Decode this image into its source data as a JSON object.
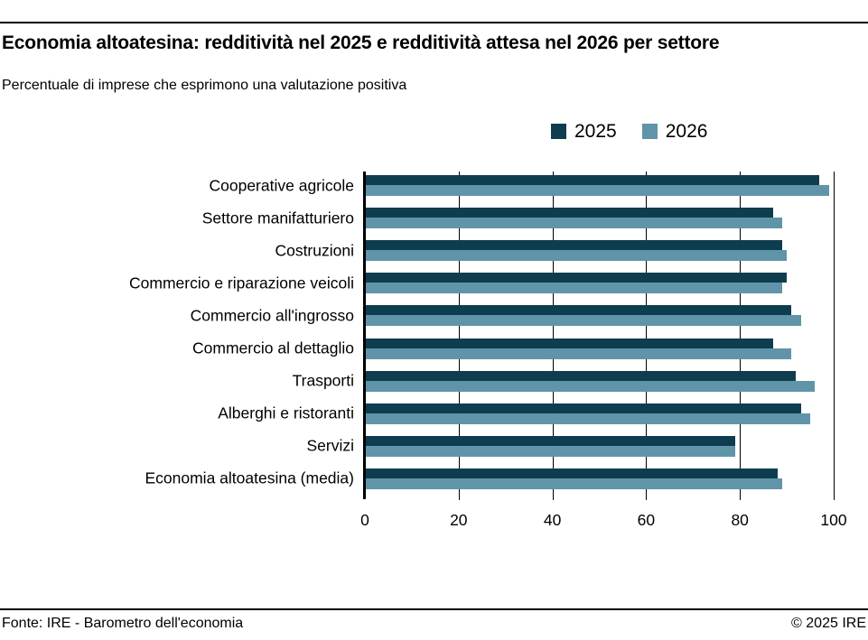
{
  "header": {
    "title": "Economia altoatesina: redditività nel 2025 e redditività attesa nel 2026 per settore",
    "subtitle": "Percentuale di imprese che esprimono una valutazione positiva"
  },
  "legend": {
    "items": [
      {
        "label": "2025",
        "color": "#0e3d50"
      },
      {
        "label": "2026",
        "color": "#6094a9"
      }
    ]
  },
  "chart_data": {
    "type": "bar",
    "orientation": "horizontal",
    "title": "Economia altoatesina: redditività nel 2025 e redditività attesa nel 2026 per settore",
    "subtitle": "Percentuale di imprese che esprimono una valutazione positiva",
    "categories": [
      "Cooperative agricole",
      "Settore manifatturiero",
      "Costruzioni",
      "Commercio e riparazione veicoli",
      "Commercio all'ingrosso",
      "Commercio al dettaglio",
      "Trasporti",
      "Alberghi e ristoranti",
      "Servizi",
      "Economia altoatesina (media)"
    ],
    "series": [
      {
        "name": "2025",
        "color": "#0e3d50",
        "values": [
          97,
          87,
          89,
          90,
          91,
          87,
          92,
          93,
          79,
          88
        ]
      },
      {
        "name": "2026",
        "color": "#6094a9",
        "values": [
          99,
          89,
          90,
          89,
          93,
          91,
          96,
          95,
          79,
          89
        ]
      }
    ],
    "xlabel": "",
    "ylabel": "",
    "xlim": [
      0,
      100
    ],
    "x_ticks": [
      0,
      20,
      40,
      60,
      80,
      100
    ],
    "grid": "vertical",
    "legend_position": "top"
  },
  "footer": {
    "source": "Fonte: IRE - Barometro dell'economia",
    "copyright": "© 2025 IRE"
  }
}
